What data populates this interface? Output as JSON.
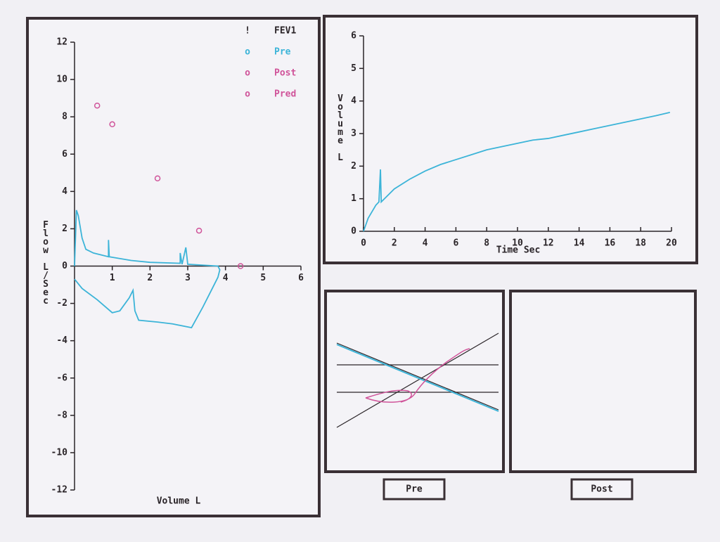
{
  "chart_data": [
    {
      "type": "line",
      "xlabel": "Volume L",
      "ylabel": "Flow L/Sec",
      "xlim": [
        0,
        6
      ],
      "xticks": [
        1,
        2,
        3,
        4,
        5,
        6
      ],
      "ylim": [
        -12,
        12
      ],
      "yticks": [
        -12,
        -10,
        -8,
        -6,
        -4,
        -2,
        0,
        2,
        4,
        6,
        8,
        10,
        12
      ],
      "fev1_marker": {
        "symbol": "!",
        "label": "FEV1"
      },
      "series": [
        {
          "name": "Pre",
          "symbol": "o",
          "color": "#3cb4d8",
          "style": "line",
          "x": [
            0,
            0.05,
            0.1,
            0.2,
            0.3,
            0.5,
            0.9,
            0.9,
            0.92,
            1.5,
            2.0,
            2.8,
            2.8,
            2.85,
            2.95,
            3.0,
            3.8,
            3.85,
            3.8,
            3.6,
            3.4,
            3.1,
            2.6,
            2.2,
            1.7,
            1.6,
            1.55,
            1.45,
            1.2,
            1.0,
            0.6,
            0.2,
            0.0
          ],
          "y": [
            0,
            3.0,
            2.7,
            1.5,
            0.9,
            0.7,
            0.5,
            1.4,
            0.5,
            0.3,
            0.2,
            0.15,
            0.7,
            0.1,
            1.0,
            0.1,
            0.0,
            -0.2,
            -0.6,
            -1.4,
            -2.2,
            -3.3,
            -3.1,
            -3.0,
            -2.9,
            -2.4,
            -1.3,
            -1.7,
            -2.4,
            -2.5,
            -1.8,
            -1.2,
            -0.7
          ]
        },
        {
          "name": "Post",
          "symbol": "o",
          "color": "#d0549a",
          "style": "line",
          "x": [],
          "y": []
        },
        {
          "name": "Pred",
          "symbol": "o",
          "color": "#d0549a",
          "style": "points",
          "x": [
            0.6,
            1.0,
            2.2,
            3.3,
            4.4
          ],
          "y": [
            8.6,
            7.6,
            4.7,
            1.9,
            0.0
          ]
        }
      ]
    },
    {
      "type": "line",
      "xlabel": "Time Sec",
      "ylabel": "Volume L",
      "xlim": [
        0,
        20
      ],
      "xticks": [
        0,
        2,
        4,
        6,
        8,
        10,
        12,
        14,
        16,
        18,
        20
      ],
      "ylim": [
        0,
        6
      ],
      "yticks": [
        0,
        1,
        2,
        3,
        4,
        5,
        6
      ],
      "series": [
        {
          "color": "#3cb4d8",
          "style": "line",
          "x": [
            0,
            0.3,
            0.8,
            1.0,
            1.1,
            1.15,
            2,
            3,
            4,
            5,
            6,
            7,
            8,
            9,
            10,
            11,
            12,
            13,
            14,
            15,
            16,
            17,
            18,
            19,
            19.9
          ],
          "y": [
            0,
            0.4,
            0.8,
            0.9,
            1.9,
            0.9,
            1.3,
            1.6,
            1.85,
            2.05,
            2.2,
            2.35,
            2.5,
            2.6,
            2.7,
            2.8,
            2.85,
            2.95,
            3.05,
            3.15,
            3.25,
            3.35,
            3.45,
            3.55,
            3.65
          ]
        }
      ]
    }
  ],
  "buttons": [
    "Pre",
    "Post"
  ]
}
